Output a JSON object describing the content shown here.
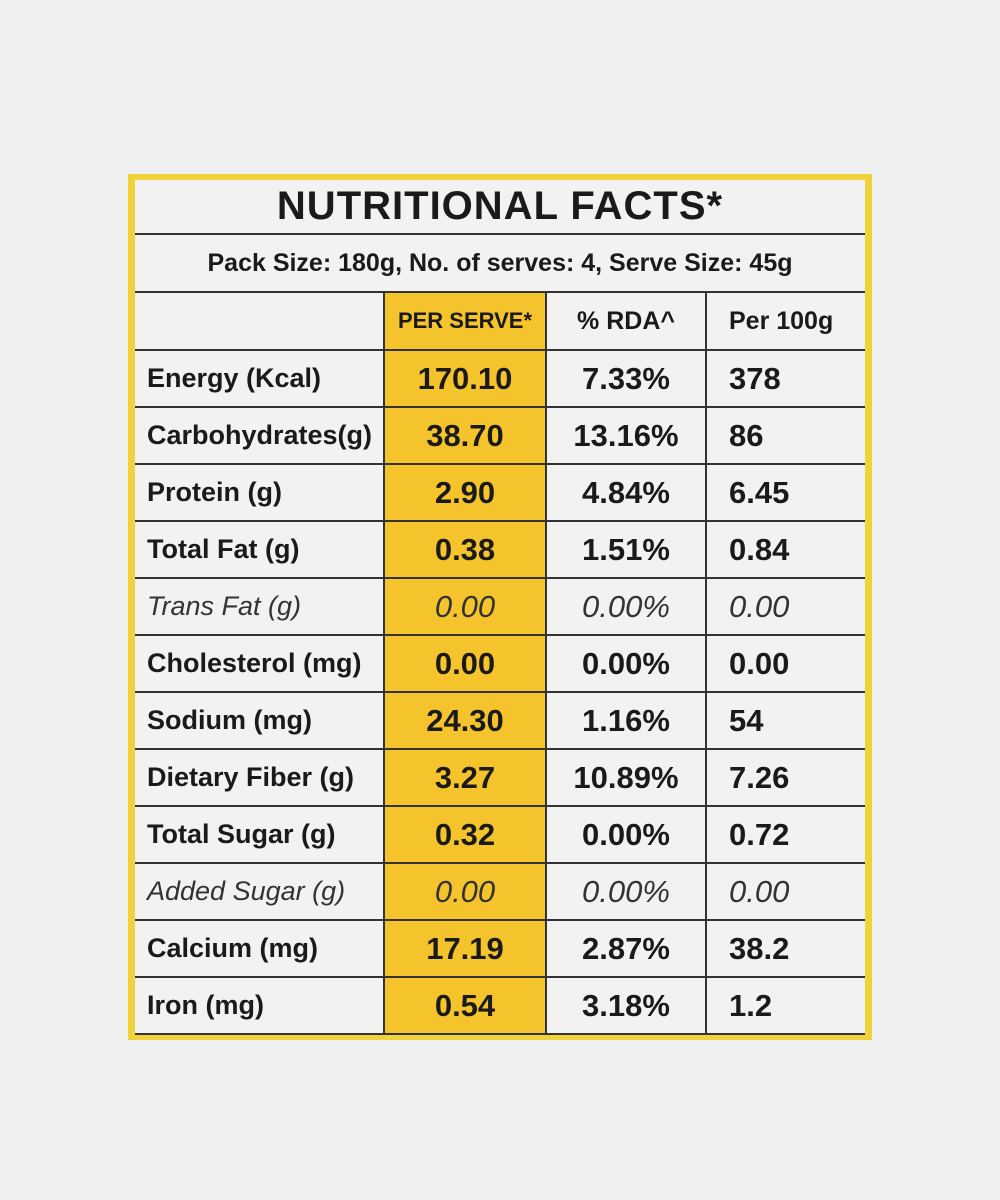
{
  "header": {
    "title": "NUTRITIONAL FACTS*",
    "subtitle": "Pack Size: 180g, No. of serves: 4, Serve Size: 45g"
  },
  "table": {
    "columns": [
      "PER SERVE*",
      "% RDA^",
      "Per 100g"
    ],
    "rows": [
      {
        "cells": [
          "Energy (Kcal)",
          "170.10",
          "7.33%",
          "378"
        ]
      },
      {
        "cells": [
          "Carbohydrates(g)",
          "38.70",
          "13.16%",
          "86"
        ]
      },
      {
        "cells": [
          "Protein (g)",
          "2.90",
          "4.84%",
          "6.45"
        ]
      },
      {
        "cells": [
          "Total Fat (g)",
          "0.38",
          "1.51%",
          "0.84"
        ]
      },
      {
        "cells": [
          "Trans Fat (g)",
          "0.00",
          "0.00%",
          "0.00"
        ],
        "style": "italic"
      },
      {
        "cells": [
          "Cholesterol (mg)",
          "0.00",
          "0.00%",
          "0.00"
        ]
      },
      {
        "cells": [
          "Sodium (mg)",
          "24.30",
          "1.16%",
          "54"
        ]
      },
      {
        "cells": [
          "Dietary Fiber (g)",
          "3.27",
          "10.89%",
          "7.26"
        ]
      },
      {
        "cells": [
          "Total Sugar (g)",
          "0.32",
          "0.00%",
          "0.72"
        ]
      },
      {
        "cells": [
          "Added Sugar (g)",
          "0.00",
          "0.00%",
          "0.00"
        ],
        "style": "italic"
      },
      {
        "cells": [
          "Calcium (mg)",
          "17.19",
          "2.87%",
          "38.2"
        ]
      },
      {
        "cells": [
          "Iron (mg)",
          "0.54",
          "3.18%",
          "1.2"
        ]
      }
    ]
  }
}
